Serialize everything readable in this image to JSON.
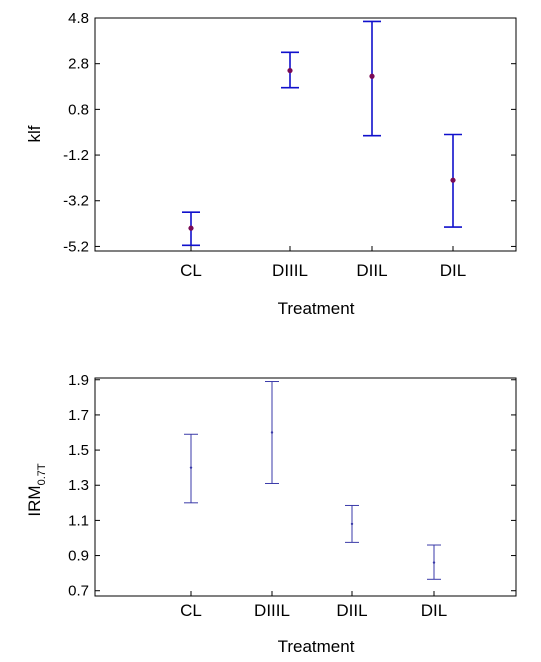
{
  "chart_data": [
    {
      "type": "errorbar",
      "xlabel": "Treatment",
      "ylabel": "klf",
      "categories": [
        "CL",
        "DIIIL",
        "DIIL",
        "DIL"
      ],
      "yticks": [
        "4.8",
        "2.8",
        "0.8",
        "-1.2",
        "-3.2",
        "-5.2"
      ],
      "ylim": [
        -5.4,
        4.8
      ],
      "series": [
        {
          "center": [
            -4.4,
            2.5,
            2.25,
            -2.3
          ],
          "lower": [
            -5.15,
            1.75,
            -0.35,
            -4.35
          ],
          "upper": [
            -3.7,
            3.3,
            4.65,
            -0.3
          ]
        }
      ],
      "grid": false,
      "colors": {
        "bar": "#1010cc",
        "point": "#7a0a55"
      }
    },
    {
      "type": "errorbar",
      "xlabel": "Treatment",
      "ylabel": "IRM",
      "ylabel_subscript": "0.7T",
      "categories": [
        "CL",
        "DIIIL",
        "DIIL",
        "DIL"
      ],
      "yticks": [
        "1.9",
        "1.7",
        "1.5",
        "1.3",
        "1.1",
        "0.9",
        "0.7"
      ],
      "ylim": [
        0.67,
        1.91
      ],
      "series": [
        {
          "center": [
            1.4,
            1.6,
            1.08,
            0.86
          ],
          "lower": [
            1.2,
            1.31,
            0.975,
            0.765
          ],
          "upper": [
            1.59,
            1.89,
            1.185,
            0.96
          ]
        }
      ],
      "grid": false,
      "colors": {
        "bar": "#3a3aa8",
        "point": "#3a3aa8"
      }
    }
  ]
}
